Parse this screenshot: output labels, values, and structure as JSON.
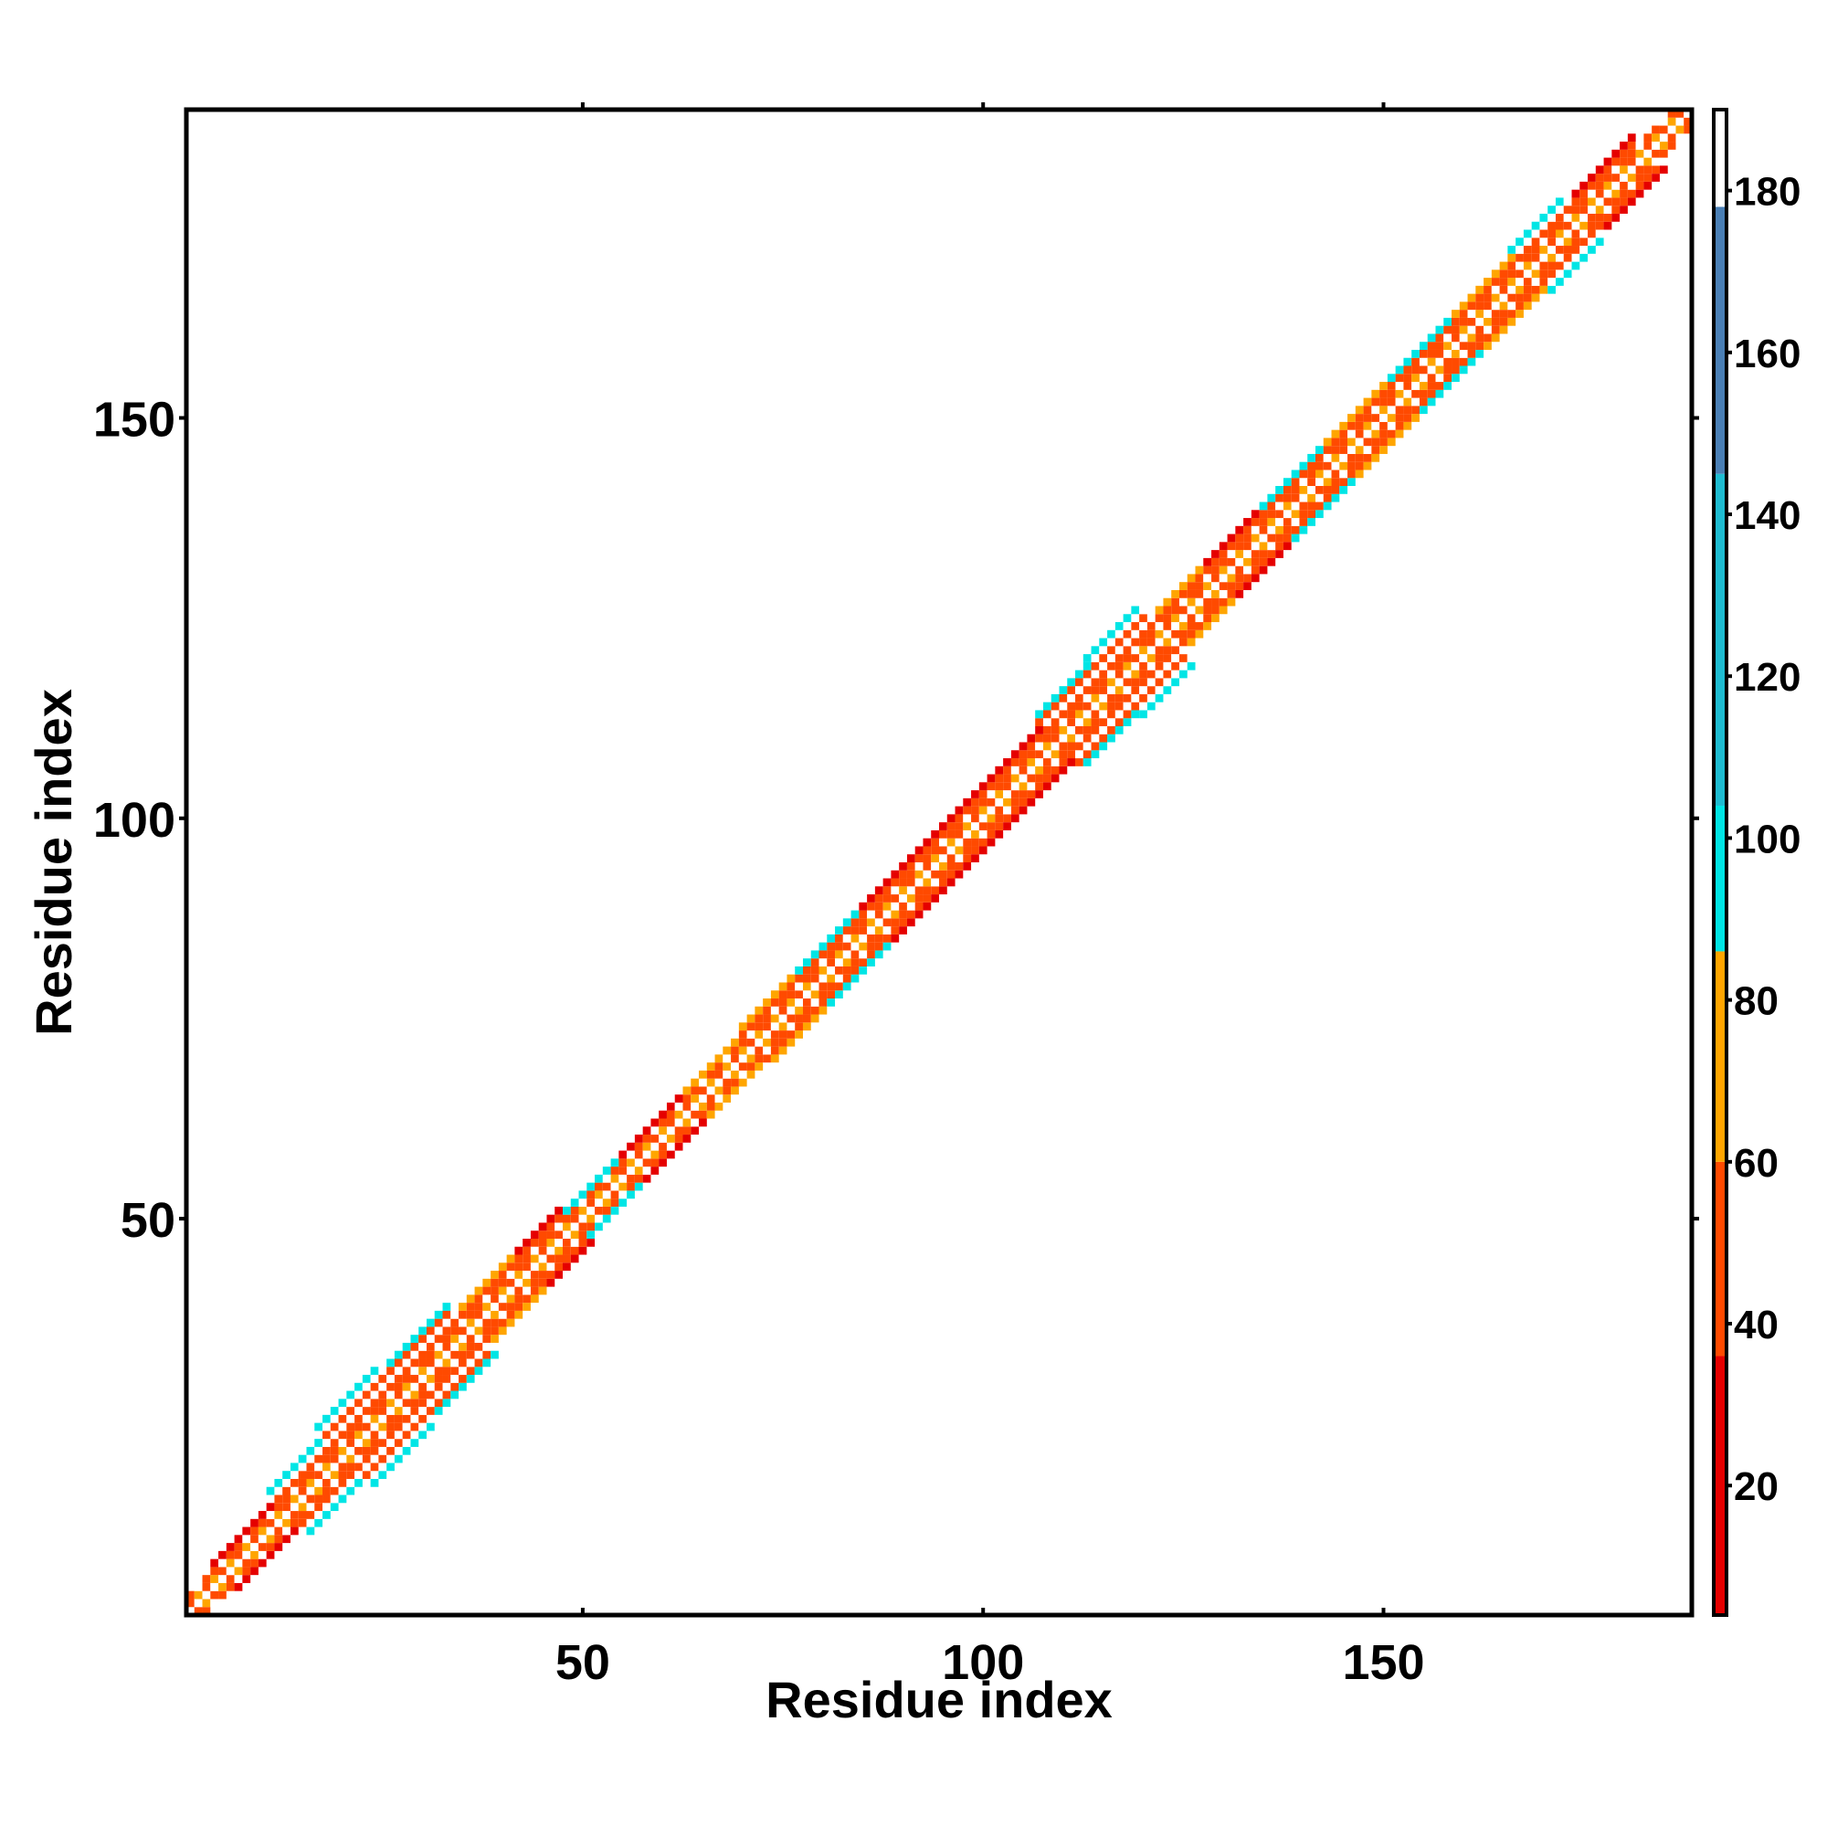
{
  "chart_data": {
    "type": "heatmap",
    "title": "",
    "xlabel": "Residue index",
    "ylabel": "Residue index",
    "xlim": [
      1,
      188
    ],
    "ylim": [
      1,
      188
    ],
    "x_ticks": [
      50,
      100,
      150
    ],
    "y_ticks": [
      50,
      100,
      150
    ],
    "grid": false,
    "colorbar": {
      "range": [
        4,
        190
      ],
      "ticks": [
        20,
        40,
        60,
        80,
        100,
        120,
        140,
        160,
        180
      ],
      "segments": [
        {
          "from": 4,
          "to": 36,
          "color": "#e50000"
        },
        {
          "from": 36,
          "to": 60,
          "color": "#ff4a00"
        },
        {
          "from": 60,
          "to": 86,
          "color": "#ffa500"
        },
        {
          "from": 86,
          "to": 104,
          "color": "#00e5e5"
        },
        {
          "from": 104,
          "to": 145,
          "color": "#1fbcd2"
        },
        {
          "from": 145,
          "to": 178,
          "color": "#4a7fb5"
        },
        {
          "from": 178,
          "to": 190,
          "color": "#ffffff"
        }
      ]
    },
    "description_of_values": "Contacts confined to a band around the diagonal; color encodes value per colorbar.",
    "band_profile": [
      {
        "residue": 1,
        "width": 1,
        "value_far": 30
      },
      {
        "residue": 10,
        "width": 2,
        "value_far": 30
      },
      {
        "residue": 16,
        "width": 4,
        "value_far": 95
      },
      {
        "residue": 24,
        "width": 6,
        "value_far": 95
      },
      {
        "residue": 33,
        "width": 5,
        "value_far": 95
      },
      {
        "residue": 40,
        "width": 3,
        "value_far": 70
      },
      {
        "residue": 46,
        "width": 3,
        "value_far": 30
      },
      {
        "residue": 52,
        "width": 2,
        "value_far": 95
      },
      {
        "residue": 60,
        "width": 2,
        "value_far": 30
      },
      {
        "residue": 68,
        "width": 2,
        "value_far": 70
      },
      {
        "residue": 75,
        "width": 3,
        "value_far": 70
      },
      {
        "residue": 82,
        "width": 3,
        "value_far": 95
      },
      {
        "residue": 90,
        "width": 3,
        "value_far": 30
      },
      {
        "residue": 98,
        "width": 3,
        "value_far": 30
      },
      {
        "residue": 106,
        "width": 3,
        "value_far": 30
      },
      {
        "residue": 113,
        "width": 5,
        "value_far": 95
      },
      {
        "residue": 120,
        "width": 6,
        "value_far": 95
      },
      {
        "residue": 126,
        "width": 3,
        "value_far": 70
      },
      {
        "residue": 132,
        "width": 3,
        "value_far": 30
      },
      {
        "residue": 140,
        "width": 3,
        "value_far": 95
      },
      {
        "residue": 148,
        "width": 3,
        "value_far": 70
      },
      {
        "residue": 156,
        "width": 3,
        "value_far": 95
      },
      {
        "residue": 164,
        "width": 3,
        "value_far": 70
      },
      {
        "residue": 172,
        "width": 4,
        "value_far": 95
      },
      {
        "residue": 178,
        "width": 3,
        "value_far": 30
      },
      {
        "residue": 188,
        "width": 1,
        "value_far": 70
      }
    ]
  }
}
